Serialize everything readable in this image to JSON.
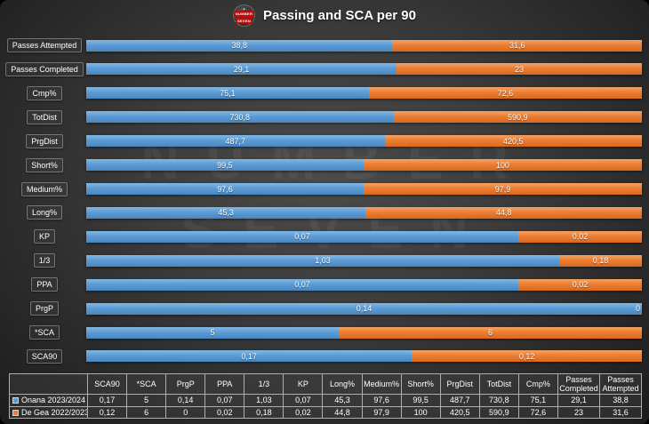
{
  "title": "Passing and SCA per 90",
  "logo": {
    "line1": "NUMBER",
    "line2": "SEVEN"
  },
  "watermark": {
    "line1": "NUMBER",
    "line2": "SEVEN"
  },
  "colors": {
    "series1": "#5b9bd5",
    "series2": "#ed7d31",
    "background": "#3a3a3a"
  },
  "chart_data": {
    "type": "bar",
    "subtype": "horizontal-100-percent-stacked",
    "title": "Passing and SCA per 90",
    "grid": false,
    "legend_position": "bottom-table",
    "series": [
      {
        "name": "Onana 2023/2024",
        "color": "#5b9bd5"
      },
      {
        "name": "De Gea 2022/2023",
        "color": "#ed7d31"
      }
    ],
    "categories": [
      "Passes Attempted",
      "Passes Completed",
      "Cmp%",
      "TotDist",
      "PrgDist",
      "Short%",
      "Medium%",
      "Long%",
      "KP",
      "1/3",
      "PPA",
      "PrgP",
      "*SCA",
      "SCA90"
    ],
    "values": [
      [
        "38,8",
        "31,6"
      ],
      [
        "29,1",
        "23"
      ],
      [
        "75,1",
        "72,6"
      ],
      [
        "730,8",
        "590,9"
      ],
      [
        "487,7",
        "420,5"
      ],
      [
        "99,5",
        "100"
      ],
      [
        "97,6",
        "97,9"
      ],
      [
        "45,3",
        "44,8"
      ],
      [
        "0,07",
        "0,02"
      ],
      [
        "1,03",
        "0,18"
      ],
      [
        "0,07",
        "0,02"
      ],
      [
        "0,14",
        "0"
      ],
      [
        "5",
        "6"
      ],
      [
        "0,17",
        "0,12"
      ]
    ]
  },
  "table": {
    "columns": [
      "",
      "SCA90",
      "*SCA",
      "PrgP",
      "PPA",
      "1/3",
      "KP",
      "Long%",
      "Medium%",
      "Short%",
      "PrgDist",
      "TotDist",
      "Cmp%",
      "Passes Completed",
      "Passes Attempted"
    ],
    "rows": [
      {
        "name": "Onana 2023/2024",
        "color": "#5b9bd5",
        "values": [
          "0,17",
          "5",
          "0,14",
          "0,07",
          "1,03",
          "0,07",
          "45,3",
          "97,6",
          "99,5",
          "487,7",
          "730,8",
          "75,1",
          "29,1",
          "38,8"
        ]
      },
      {
        "name": "De Gea 2022/2023",
        "color": "#ed7d31",
        "values": [
          "0,12",
          "6",
          "0",
          "0,02",
          "0,18",
          "0,02",
          "44,8",
          "97,9",
          "100",
          "420,5",
          "590,9",
          "72,6",
          "23",
          "31,6"
        ]
      }
    ]
  }
}
